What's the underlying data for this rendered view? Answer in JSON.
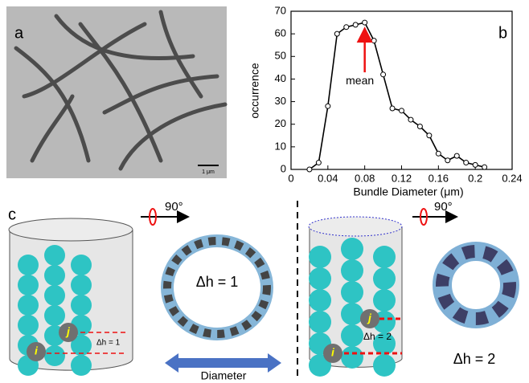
{
  "panel_labels": [
    "a",
    "b",
    "c"
  ],
  "micrograph": {
    "scale_bar": "1 μm"
  },
  "chart_data": {
    "type": "line",
    "x_label": "Bundle Diameter (μm)",
    "y_label": "occurrence",
    "annotation": "mean",
    "x": [
      0.02,
      0.03,
      0.04,
      0.05,
      0.06,
      0.07,
      0.08,
      0.09,
      0.1,
      0.11,
      0.12,
      0.13,
      0.14,
      0.15,
      0.16,
      0.17,
      0.18,
      0.19,
      0.2,
      0.21
    ],
    "series": [
      {
        "name": "occurrence",
        "color": "#000000",
        "values": [
          0,
          3,
          28,
          60,
          63,
          64,
          65,
          57,
          42,
          27,
          26,
          22,
          19,
          15,
          7,
          4,
          6,
          3,
          2,
          1
        ]
      }
    ],
    "xlim": [
      0,
      0.24
    ],
    "xticks": [
      0,
      0.04,
      0.08,
      0.12,
      0.16,
      0.2,
      0.24
    ],
    "ylim": [
      0,
      70
    ],
    "yticks": [
      0,
      10,
      20,
      30,
      40,
      50,
      60,
      70
    ],
    "grid": false
  },
  "diagram": {
    "rotation_left": "90°",
    "rotation_right": "90°",
    "ring_left_label": "Δh = 1",
    "ring_right_label": "Δh = 2",
    "cylinder_left_label": "Δh = 1",
    "cylinder_right_label": "Δh = 2",
    "diameter": "Diameter",
    "bead_i": "i",
    "bead_j": "j"
  }
}
